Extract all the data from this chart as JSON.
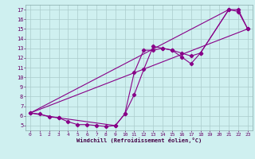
{
  "xlabel": "Windchill (Refroidissement éolien,°C)",
  "xlim": [
    -0.5,
    23.5
  ],
  "ylim": [
    4.5,
    17.5
  ],
  "xticks": [
    0,
    1,
    2,
    3,
    4,
    5,
    6,
    7,
    8,
    9,
    10,
    11,
    12,
    13,
    14,
    15,
    16,
    17,
    18,
    19,
    20,
    21,
    22,
    23
  ],
  "yticks": [
    5,
    6,
    7,
    8,
    9,
    10,
    11,
    12,
    13,
    14,
    15,
    16,
    17
  ],
  "bg_color": "#cff0f0",
  "line_color": "#880088",
  "grid_color": "#aacccc",
  "line1_x": [
    0,
    1,
    2,
    3,
    4,
    5,
    6,
    7,
    8,
    9,
    10,
    11,
    12,
    13,
    14,
    15,
    16,
    17,
    18,
    21,
    22,
    23
  ],
  "line1_y": [
    6.3,
    6.2,
    5.9,
    5.8,
    5.4,
    5.1,
    5.1,
    5.0,
    4.9,
    5.0,
    6.2,
    8.2,
    10.8,
    13.2,
    13.0,
    12.8,
    12.5,
    12.2,
    12.5,
    17.0,
    17.0,
    15.0
  ],
  "line2_x": [
    0,
    3,
    9,
    10,
    11,
    12,
    13,
    14,
    15,
    16,
    17,
    18,
    21,
    22,
    23
  ],
  "line2_y": [
    6.3,
    5.8,
    5.0,
    6.2,
    10.5,
    12.8,
    12.8,
    13.0,
    12.8,
    12.1,
    11.4,
    12.5,
    17.0,
    16.8,
    15.0
  ],
  "line3_x": [
    0,
    23
  ],
  "line3_y": [
    6.3,
    15.0
  ],
  "line4_x": [
    0,
    21
  ],
  "line4_y": [
    6.3,
    17.0
  ]
}
